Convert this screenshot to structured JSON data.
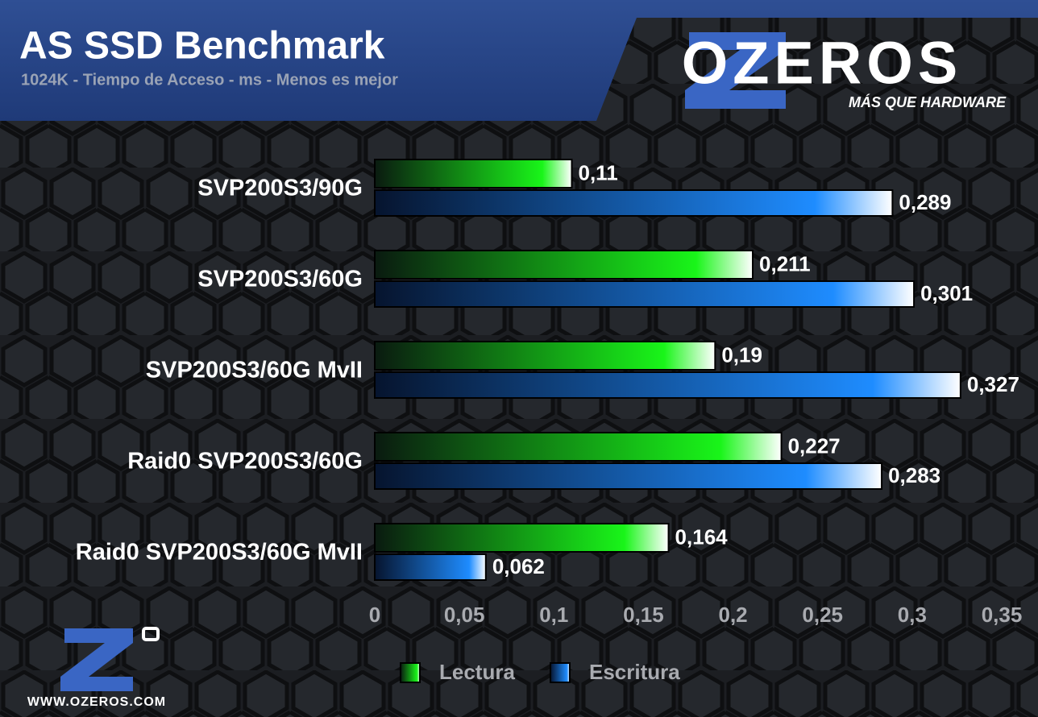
{
  "chart_data": {
    "type": "hbar",
    "title": "AS SSD Benchmark",
    "subtitle": "1024K - Tiempo de Acceso - ms - Menos es mejor",
    "categories": [
      "SVP200S3/90G",
      "SVP200S3/60G",
      "SVP200S3/60G MvII",
      "Raid0 SVP200S3/60G",
      "Raid0 SVP200S3/60G MvII"
    ],
    "series": [
      {
        "name": "Lectura",
        "color": "#19f519",
        "values": [
          0.11,
          0.211,
          0.19,
          0.227,
          0.164
        ],
        "value_labels": [
          "0,11",
          "0,211",
          "0,19",
          "0,227",
          "0,164"
        ]
      },
      {
        "name": "Escritura",
        "color": "#1e8cff",
        "values": [
          0.289,
          0.301,
          0.327,
          0.283,
          0.062
        ],
        "value_labels": [
          "0,289",
          "0,301",
          "0,327",
          "0,283",
          "0,062"
        ]
      }
    ],
    "xlim": [
      0,
      0.35
    ],
    "xticks": [
      0,
      {
        "value": 0.05,
        "label": "0,05"
      },
      {
        "value": 0.1,
        "label": "0,1"
      },
      {
        "value": 0.15,
        "label": "0,15"
      },
      {
        "value": 0.2,
        "label": "0,2"
      },
      {
        "value": 0.25,
        "label": "0,25"
      },
      {
        "value": 0.3,
        "label": "0,3"
      },
      {
        "value": 0.35,
        "label": "0,35"
      }
    ],
    "grid": false,
    "legend": "bottom"
  },
  "brand": {
    "name": "OZEROS",
    "tagline": "MÁS QUE HARDWARE",
    "url": "WWW.OZEROS.COM"
  }
}
